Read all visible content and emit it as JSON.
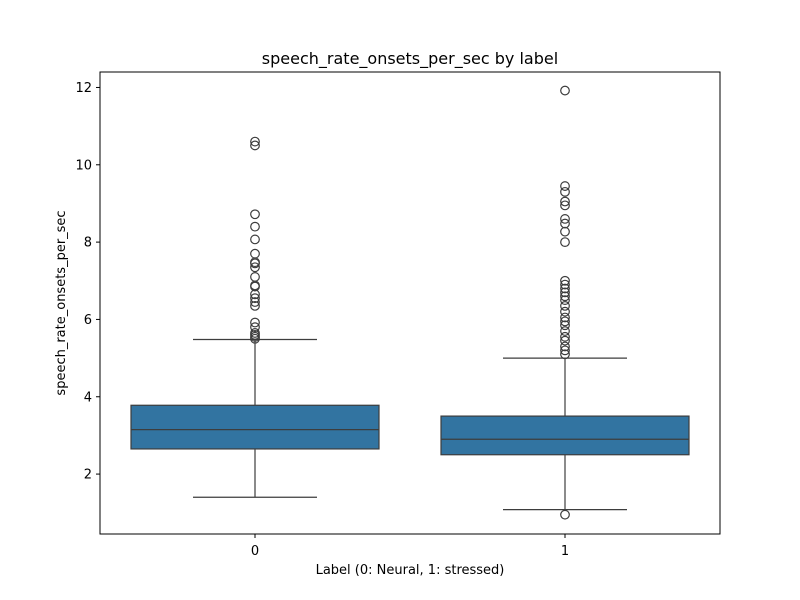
{
  "chart_data": {
    "type": "box",
    "title": "speech_rate_onsets_per_sec by label",
    "xlabel": "Label (0: Neural, 1: stressed)",
    "ylabel": "speech_rate_onsets_per_sec",
    "categories": [
      "0",
      "1"
    ],
    "yticks": [
      2,
      4,
      6,
      8,
      10,
      12
    ],
    "ylim": [
      0.45,
      12.4
    ],
    "grid": false,
    "legend": "none",
    "colors": {
      "box_fill": "#3274a1",
      "line": "#3d3d3d"
    },
    "boxes": [
      {
        "category": "0",
        "whisker_low": 1.4,
        "q1": 2.65,
        "median": 3.15,
        "q3": 3.78,
        "whisker_high": 5.48,
        "outliers": [
          5.5,
          5.55,
          5.6,
          5.65,
          5.8,
          5.92,
          6.35,
          6.45,
          6.55,
          6.65,
          6.85,
          6.88,
          7.1,
          7.35,
          7.45,
          7.48,
          7.7,
          8.07,
          8.4,
          8.72,
          10.5,
          10.6
        ]
      },
      {
        "category": "1",
        "whisker_low": 1.08,
        "q1": 2.5,
        "median": 2.9,
        "q3": 3.5,
        "whisker_high": 5.0,
        "outliers": [
          0.95,
          5.1,
          5.2,
          5.3,
          5.45,
          5.55,
          5.7,
          5.85,
          5.95,
          6.05,
          6.2,
          6.35,
          6.5,
          6.6,
          6.7,
          6.8,
          6.9,
          7.0,
          8.0,
          8.27,
          8.48,
          8.6,
          8.95,
          9.05,
          9.3,
          9.45,
          11.92
        ]
      }
    ]
  }
}
